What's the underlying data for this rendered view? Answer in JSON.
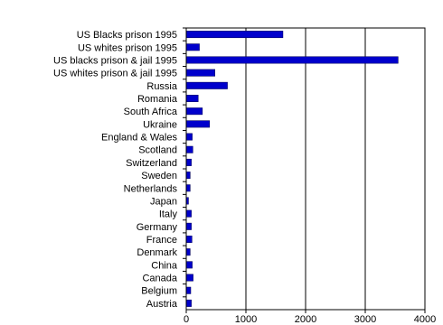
{
  "chart_data": {
    "type": "bar",
    "orientation": "horizontal",
    "title": "",
    "xlabel": "",
    "ylabel": "",
    "xlim": [
      0,
      4000
    ],
    "xticks": [
      0,
      1000,
      2000,
      3000,
      4000
    ],
    "xtick_labels": [
      "0",
      "1000",
      "2000",
      "3000",
      "4000"
    ],
    "grid": "vertical major gridlines",
    "legend": "none",
    "bar_color": "#0000cc",
    "bar_edge_color": "#000066",
    "categories": [
      "US Blacks  prison 1995",
      "US whites prison 1995",
      "US blacks prison & jail 1995",
      "US whites prison & jail 1995",
      "Russia",
      "Romania",
      "South Africa",
      "Ukraine",
      "England & Wales",
      "Scotland",
      "Switzerland",
      "Sweden",
      "Netherlands",
      "Japan",
      "Italy",
      "Germany",
      "France",
      "Denmark",
      "China",
      "Canada",
      "Belgium",
      "Austria"
    ],
    "values": [
      1620,
      220,
      3550,
      480,
      690,
      200,
      270,
      390,
      100,
      110,
      85,
      65,
      65,
      37,
      85,
      85,
      95,
      65,
      100,
      115,
      75,
      85
    ]
  }
}
